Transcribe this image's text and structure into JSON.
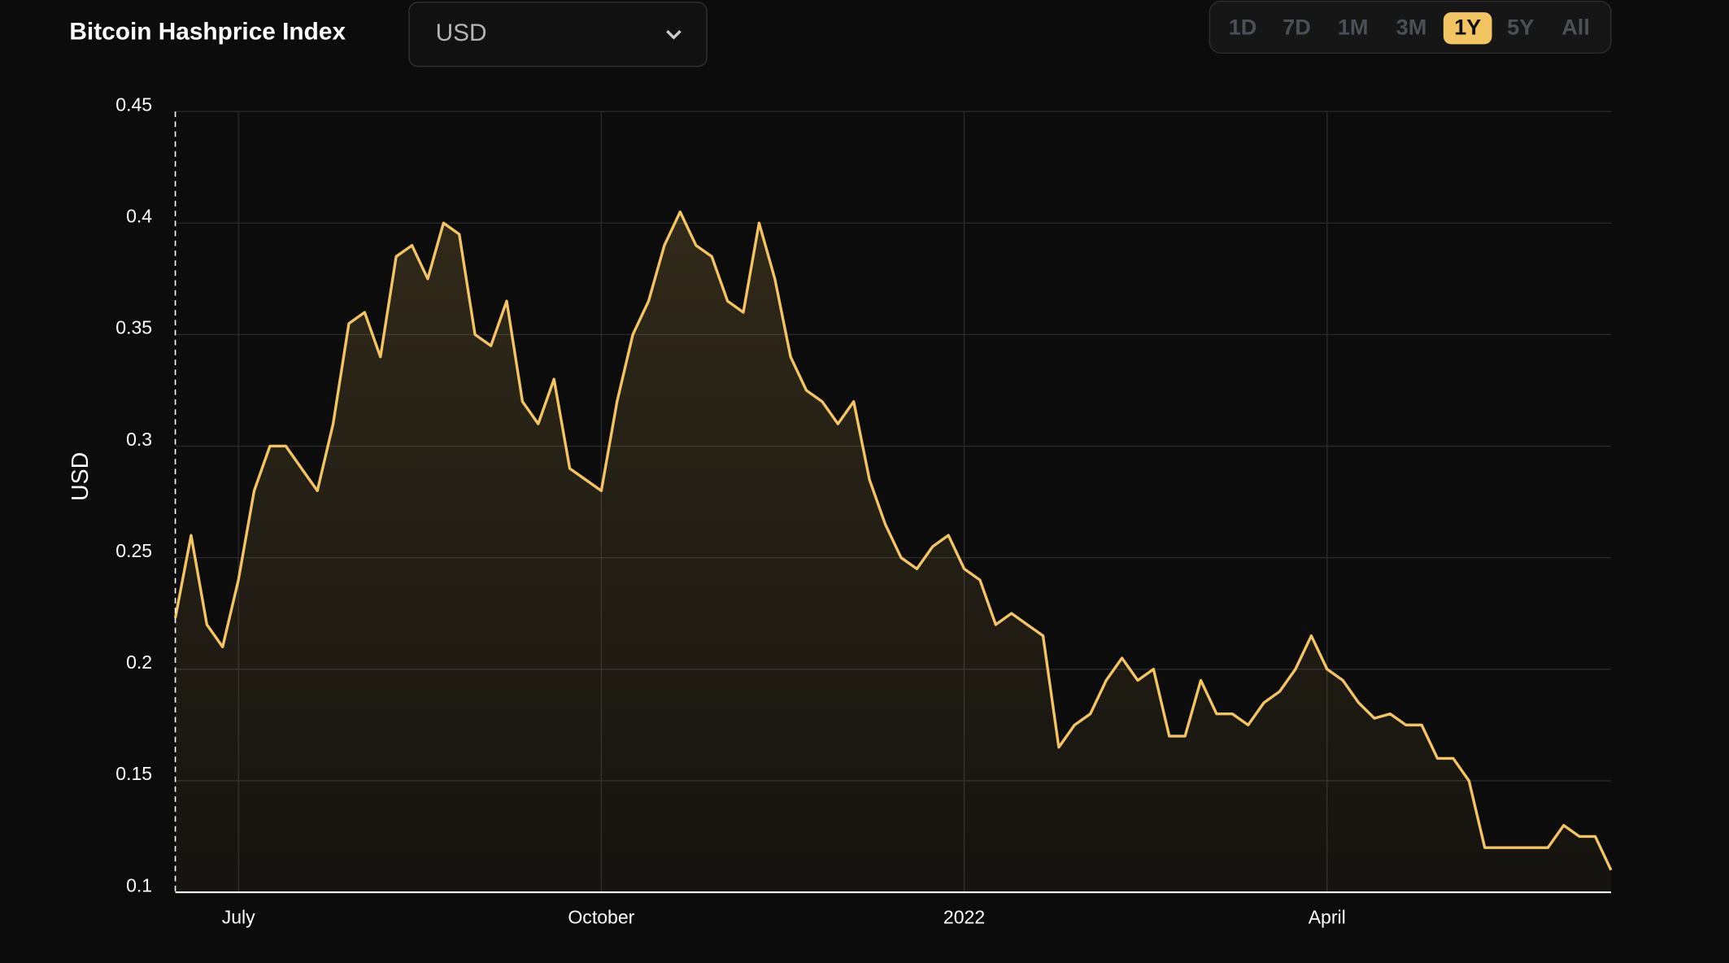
{
  "header": {
    "title": "Bitcoin Hashprice Index",
    "currency_select": "USD",
    "ranges": [
      "1D",
      "7D",
      "1M",
      "3M",
      "1Y",
      "5Y",
      "All"
    ],
    "active_range": "1Y"
  },
  "chart_data": {
    "type": "line",
    "y_label": "USD",
    "color": "#f2c462",
    "grid": true,
    "categories": [
      null,
      null,
      null,
      null,
      "July",
      null,
      null,
      null,
      null,
      null,
      null,
      null,
      null,
      null,
      null,
      null,
      null,
      null,
      null,
      null,
      null,
      null,
      null,
      null,
      null,
      null,
      null,
      "October",
      null,
      null,
      null,
      null,
      null,
      null,
      null,
      null,
      null,
      null,
      null,
      null,
      null,
      null,
      null,
      null,
      null,
      null,
      null,
      null,
      null,
      null,
      "2022",
      null,
      null,
      null,
      null,
      null,
      null,
      null,
      null,
      null,
      null,
      null,
      null,
      null,
      null,
      null,
      null,
      null,
      null,
      null,
      null,
      null,
      null,
      "April",
      null,
      null,
      null,
      null,
      null,
      null,
      null,
      null,
      null,
      null,
      null,
      null,
      null,
      null,
      null,
      null,
      null,
      null
    ],
    "values": [
      0.223,
      0.26,
      0.22,
      0.21,
      0.24,
      0.28,
      0.3,
      0.3,
      0.29,
      0.28,
      0.31,
      0.355,
      0.36,
      0.34,
      0.385,
      0.39,
      0.375,
      0.4,
      0.395,
      0.35,
      0.345,
      0.365,
      0.32,
      0.31,
      0.33,
      0.29,
      0.285,
      0.28,
      0.32,
      0.35,
      0.365,
      0.39,
      0.405,
      0.39,
      0.385,
      0.365,
      0.36,
      0.4,
      0.375,
      0.34,
      0.325,
      0.32,
      0.31,
      0.32,
      0.285,
      0.265,
      0.25,
      0.245,
      0.255,
      0.26,
      0.245,
      0.24,
      0.22,
      0.225,
      0.22,
      0.215,
      0.165,
      0.175,
      0.18,
      0.195,
      0.205,
      0.195,
      0.2,
      0.17,
      0.17,
      0.195,
      0.18,
      0.18,
      0.175,
      0.185,
      0.19,
      0.2,
      0.215,
      0.2,
      0.195,
      0.185,
      0.178,
      0.18,
      0.175,
      0.175,
      0.16,
      0.16,
      0.15,
      0.12,
      0.12,
      0.12,
      0.12,
      0.12,
      0.13,
      0.125,
      0.125,
      0.11
    ],
    "ylim": [
      0.1,
      0.45
    ],
    "yticks": [
      0.1,
      0.15,
      0.2,
      0.25,
      0.3,
      0.35,
      0.4,
      0.45
    ]
  }
}
